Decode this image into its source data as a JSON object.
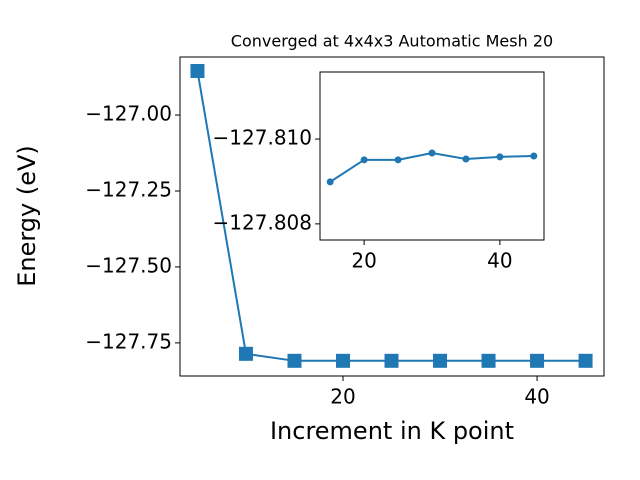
{
  "chart_data": [
    {
      "type": "line",
      "title": "Converged at 4x4x3 Automatic Mesh 20",
      "x_label": "Increment in K point",
      "y_label": "Energy (eV)",
      "x": [
        5,
        10,
        15,
        20,
        25,
        30,
        35,
        40,
        45
      ],
      "values": [
        -126.855,
        -127.786,
        -127.809,
        -127.809,
        -127.809,
        -127.809,
        -127.809,
        -127.809,
        -127.809
      ],
      "color": "#1f77b4",
      "marker": "square",
      "xlim": [
        3.2,
        46.9
      ],
      "xticks": [
        20,
        40
      ],
      "ylim": [
        -127.859,
        -126.809
      ],
      "yticks": [
        {
          "value": -127.0,
          "label": "−127.00"
        },
        {
          "value": -127.25,
          "label": "−127.25"
        },
        {
          "value": -127.5,
          "label": "−127.50"
        },
        {
          "value": -127.75,
          "label": "−127.75"
        }
      ]
    },
    {
      "type": "line",
      "x": [
        15,
        20,
        25,
        30,
        35,
        40,
        45
      ],
      "values": [
        -127.80899,
        -127.80951,
        -127.80951,
        -127.80967,
        -127.80953,
        -127.80958,
        -127.8096
      ],
      "color": "#1f77b4",
      "marker": "circle",
      "xlim": [
        13.5,
        46.5
      ],
      "xticks": [
        20,
        40
      ],
      "ylim": [
        -127.80762,
        -127.81158
      ],
      "yticks": [
        {
          "value": -127.81,
          "label": "−127.810"
        },
        {
          "value": -127.808,
          "label": "−127.808"
        }
      ]
    }
  ]
}
